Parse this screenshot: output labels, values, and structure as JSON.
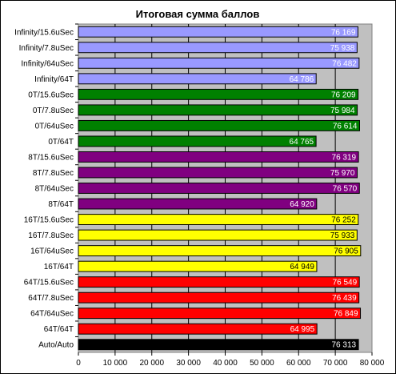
{
  "chart_data": {
    "type": "bar",
    "orientation": "horizontal",
    "title": "Итоговая сумма баллов",
    "xlabel": "",
    "ylabel": "",
    "xlim": [
      0,
      80000
    ],
    "x_ticks": [
      0,
      10000,
      20000,
      30000,
      40000,
      50000,
      60000,
      70000,
      80000
    ],
    "x_tick_labels": [
      "0",
      "10 000",
      "20 000",
      "30 000",
      "40 000",
      "50 000",
      "60 000",
      "70 000",
      "80 000"
    ],
    "grid": true,
    "plot_background": "#c0c0c0",
    "categories": [
      "Infinity/15.6uSec",
      "Infinity/7.8uSec",
      "Infinity/64uSec",
      "Infinity/64T",
      "0T/15.6uSec",
      "0T/7.8uSec",
      "0T/64uSec",
      "0T/64T",
      "8T/15.6uSec",
      "8T/7.8uSec",
      "8T/64uSec",
      "8T/64T",
      "16T/15.6uSec",
      "16T/7.8uSec",
      "16T/64uSec",
      "16T/64T",
      "64T/15.6uSec",
      "64T/7.8uSec",
      "64T/64uSec",
      "64T/64T",
      "Auto/Auto"
    ],
    "values": [
      76169,
      75938,
      76482,
      64786,
      76209,
      75984,
      76614,
      64765,
      76319,
      75970,
      76570,
      64920,
      76252,
      75933,
      76905,
      64949,
      76549,
      76439,
      76849,
      64995,
      76313
    ],
    "value_labels": [
      "76 169",
      "75 938",
      "76 482",
      "64 786",
      "76 209",
      "75 984",
      "76 614",
      "64 765",
      "76 319",
      "75 970",
      "76 570",
      "64 920",
      "76 252",
      "75 933",
      "76 905",
      "64 949",
      "76 549",
      "76 439",
      "76 849",
      "64 995",
      "76 313"
    ],
    "bar_colors": [
      "#9999ff",
      "#9999ff",
      "#9999ff",
      "#9999ff",
      "#008000",
      "#008000",
      "#008000",
      "#008000",
      "#800080",
      "#800080",
      "#800080",
      "#800080",
      "#ffff00",
      "#ffff00",
      "#ffff00",
      "#ffff00",
      "#ff0000",
      "#ff0000",
      "#ff0000",
      "#ff0000",
      "#000000"
    ],
    "label_text_colors": [
      "#ffffff",
      "#ffffff",
      "#ffffff",
      "#ffffff",
      "#ffffff",
      "#ffffff",
      "#ffffff",
      "#ffffff",
      "#ffffff",
      "#ffffff",
      "#ffffff",
      "#ffffff",
      "#000000",
      "#000000",
      "#000000",
      "#000000",
      "#ffffff",
      "#ffffff",
      "#ffffff",
      "#ffffff",
      "#ffffff"
    ]
  }
}
